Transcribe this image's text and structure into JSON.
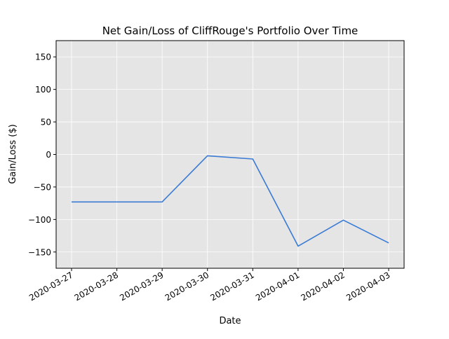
{
  "chart_data": {
    "type": "line",
    "title": "Net Gain/Loss of CliffRouge's Portfolio Over Time",
    "xlabel": "Date",
    "ylabel": "Gain/Loss ($)",
    "x": [
      "2020-03-27",
      "2020-03-28",
      "2020-03-29",
      "2020-03-30",
      "2020-03-31",
      "2020-04-01",
      "2020-04-02",
      "2020-04-03"
    ],
    "series": [
      {
        "values": [
          -73,
          -73,
          -73,
          -2,
          -7,
          -141,
          -101,
          -136
        ]
      }
    ],
    "ylim": [
      -175,
      175
    ],
    "yticks": [
      -150,
      -100,
      -50,
      0,
      50,
      100,
      150
    ],
    "ytick_labels": [
      "−150",
      "−100",
      "−50",
      "0",
      "50",
      "100",
      "150"
    ],
    "grid": true,
    "legend": "none",
    "colors": {
      "line": "#3a7bd5",
      "plot_background": "#e5e5e5",
      "grid": "#ffffff"
    }
  }
}
